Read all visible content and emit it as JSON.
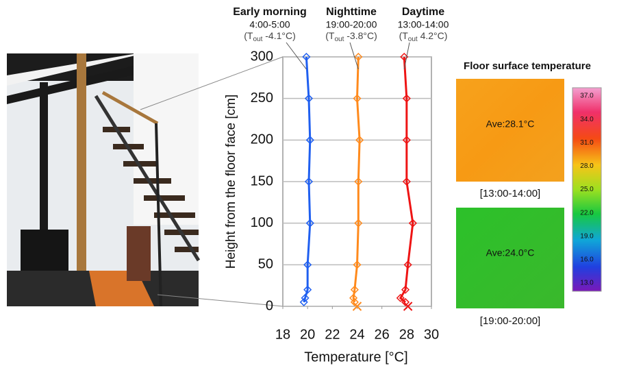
{
  "chart_data": {
    "type": "line",
    "x_label": "Temperature [°C]",
    "y_label": "Height from the floor face [cm]",
    "y": [
      5,
      10,
      20,
      50,
      100,
      150,
      200,
      250,
      300
    ],
    "series": [
      {
        "name": "Early morning",
        "time": "4:00-5:00",
        "condition": [
          "(T",
          "out",
          " -4.1°C)"
        ],
        "color": "#1f5ff0",
        "values": [
          19.7,
          19.8,
          20.0,
          20.0,
          20.2,
          20.1,
          20.2,
          20.1,
          19.9
        ]
      },
      {
        "name": "Nighttime",
        "time": "19:00-20:00",
        "condition": [
          "(T",
          "out",
          " -3.8°C)"
        ],
        "color": "#ff8a1c",
        "values": [
          23.8,
          23.7,
          23.8,
          24.0,
          24.1,
          24.1,
          24.2,
          24.0,
          24.1
        ],
        "floor_surface": 24.0
      },
      {
        "name": "Daytime",
        "time": "13:00-14:00",
        "condition": [
          "(T",
          "out",
          " 4.2°C)"
        ],
        "color": "#ee1414",
        "values": [
          27.9,
          27.5,
          27.9,
          28.1,
          28.5,
          28.0,
          28.0,
          28.0,
          27.8
        ],
        "floor_surface": 28.1
      }
    ],
    "xlim": [
      18,
      30
    ],
    "xticks": [
      18,
      20,
      22,
      24,
      26,
      28,
      30
    ],
    "ylim": [
      0,
      300
    ],
    "yticks": [
      0,
      50,
      100,
      150,
      200,
      250,
      300
    ],
    "grid": true
  },
  "thermal": {
    "title": "Floor surface temperature",
    "images": [
      {
        "average": "Ave:28.1°C",
        "period": "[13:00-14:00]"
      },
      {
        "average": "Ave:24.0°C",
        "period": "[19:00-20:00]"
      }
    ],
    "scale": [
      "37.0",
      "34.0",
      "31.0",
      "28.0",
      "25.0",
      "22.0",
      "19.0",
      "16.0",
      "13.0"
    ]
  }
}
